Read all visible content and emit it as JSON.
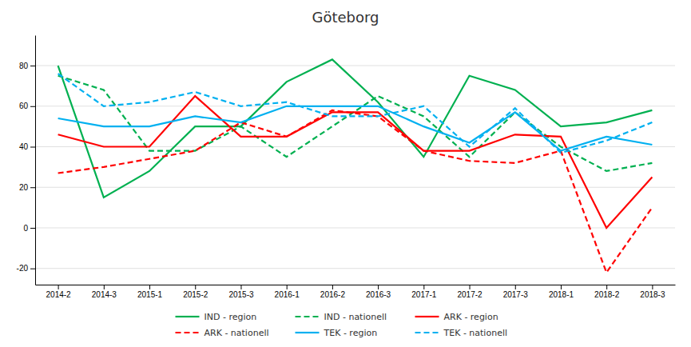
{
  "chart_data": {
    "type": "line",
    "title": "Göteborg",
    "categories": [
      "2014-2",
      "2014-3",
      "2015-1",
      "2015-2",
      "2015-3",
      "2016-1",
      "2016-2",
      "2016-3",
      "2017-1",
      "2017-2",
      "2017-3",
      "2018-1",
      "2018-2",
      "2018-3"
    ],
    "series": [
      {
        "name": "IND - region",
        "color": "#00b050",
        "line_style": "solid",
        "values": [
          80,
          15,
          28,
          50,
          50,
          72,
          83,
          62,
          35,
          75,
          68,
          50,
          52,
          58
        ]
      },
      {
        "name": "IND - nationell",
        "color": "#00b050",
        "line_style": "dashed",
        "values": [
          75,
          68,
          38,
          38,
          50,
          35,
          50,
          65,
          55,
          35,
          57,
          40,
          28,
          32
        ]
      },
      {
        "name": "ARK - region",
        "color": "#ff0000",
        "line_style": "solid",
        "values": [
          46,
          40,
          40,
          65,
          45,
          45,
          57,
          57,
          38,
          38,
          46,
          45,
          0,
          25
        ]
      },
      {
        "name": "ARK - nationell",
        "color": "#ff0000",
        "line_style": "dashed",
        "values": [
          27,
          30,
          34,
          38,
          52,
          45,
          58,
          55,
          38,
          33,
          32,
          38,
          -22,
          10
        ]
      },
      {
        "name": "TEK - region",
        "color": "#00b0f0",
        "line_style": "solid",
        "values": [
          54,
          50,
          50,
          55,
          52,
          60,
          60,
          60,
          50,
          42,
          57,
          38,
          45,
          41
        ]
      },
      {
        "name": "TEK - nationell",
        "color": "#00b0f0",
        "line_style": "dashed",
        "values": [
          76,
          60,
          62,
          67,
          60,
          62,
          55,
          55,
          60,
          40,
          59,
          37,
          43,
          52
        ]
      }
    ],
    "ylim": [
      -28,
      95
    ],
    "yticks": [
      -20,
      0,
      20,
      40,
      60,
      80
    ],
    "grid": true,
    "legend": "bottom"
  }
}
